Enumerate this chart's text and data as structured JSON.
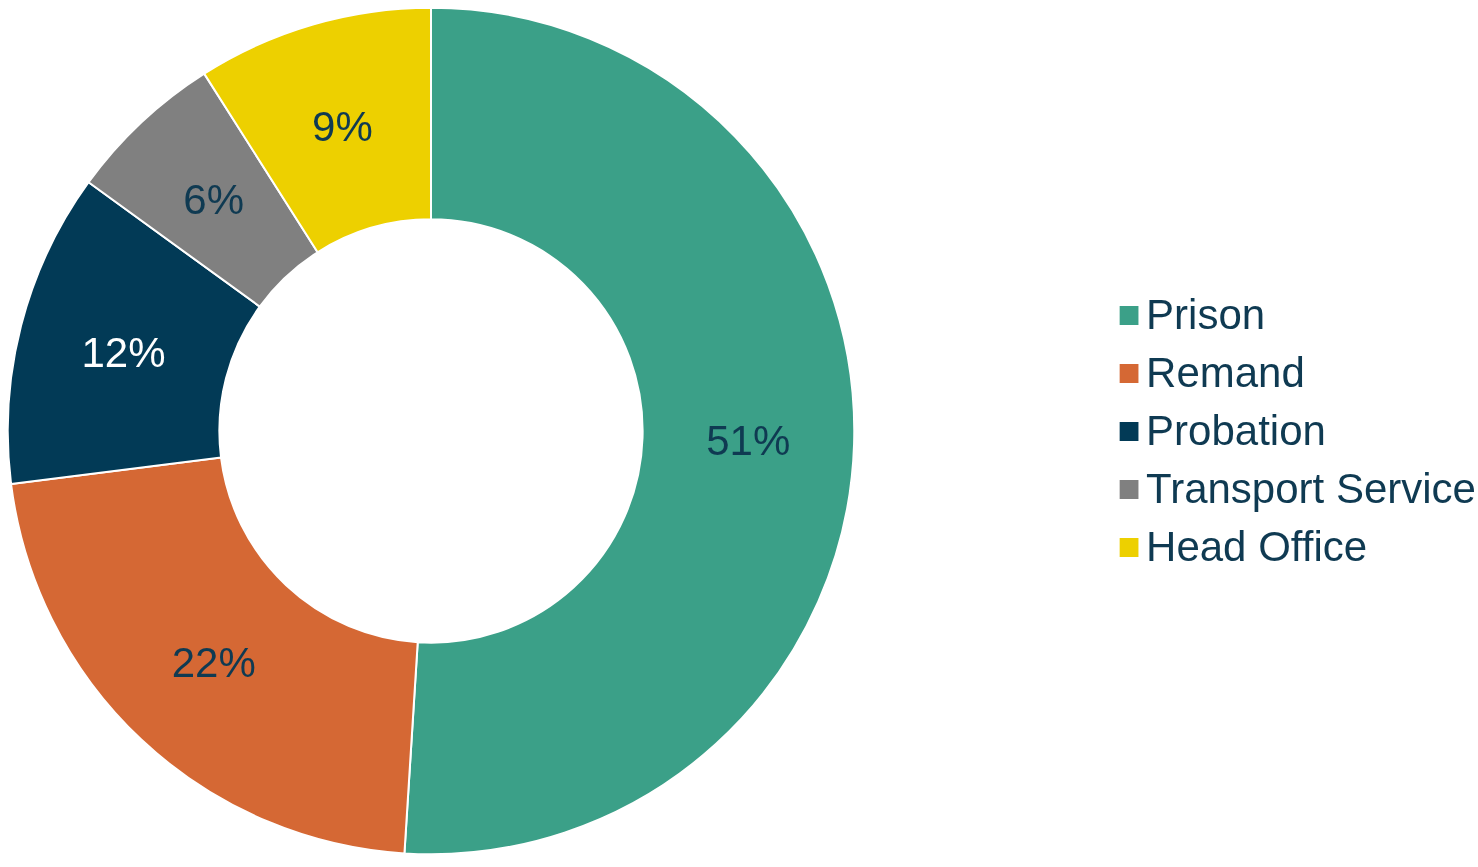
{
  "chart_data": {
    "type": "donut",
    "categories": [
      "Prison",
      "Remand",
      "Probation",
      "Transport Service",
      "Head Office"
    ],
    "values": [
      51,
      22,
      12,
      6,
      9
    ],
    "colors": [
      "#3ba088",
      "#d56834",
      "#023a56",
      "#808080",
      "#edd000"
    ],
    "value_labels": [
      "51%",
      "22%",
      "12%",
      "6%",
      "9%"
    ],
    "legend": "right"
  }
}
